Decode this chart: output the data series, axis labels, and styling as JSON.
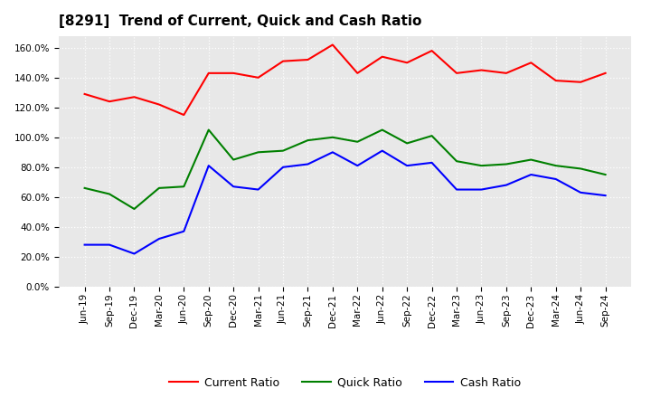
{
  "title": "[8291]  Trend of Current, Quick and Cash Ratio",
  "labels": [
    "Jun-19",
    "Sep-19",
    "Dec-19",
    "Mar-20",
    "Jun-20",
    "Sep-20",
    "Dec-20",
    "Mar-21",
    "Jun-21",
    "Sep-21",
    "Dec-21",
    "Mar-22",
    "Jun-22",
    "Sep-22",
    "Dec-22",
    "Mar-23",
    "Jun-23",
    "Sep-23",
    "Dec-23",
    "Mar-24",
    "Jun-24",
    "Sep-24"
  ],
  "current_ratio": [
    129,
    124,
    127,
    122,
    115,
    143,
    143,
    140,
    151,
    152,
    162,
    143,
    154,
    150,
    158,
    143,
    145,
    143,
    150,
    138,
    137,
    143
  ],
  "quick_ratio": [
    66,
    62,
    52,
    66,
    67,
    105,
    85,
    90,
    91,
    98,
    100,
    97,
    105,
    96,
    101,
    84,
    81,
    82,
    85,
    81,
    79,
    75
  ],
  "cash_ratio": [
    28,
    28,
    22,
    32,
    37,
    81,
    67,
    65,
    80,
    82,
    90,
    81,
    91,
    81,
    83,
    65,
    65,
    68,
    75,
    72,
    63,
    61
  ],
  "current_color": "#ff0000",
  "quick_color": "#008000",
  "cash_color": "#0000ff",
  "ylim": [
    0,
    168
  ],
  "yticks": [
    0,
    20,
    40,
    60,
    80,
    100,
    120,
    140,
    160
  ],
  "legend_labels": [
    "Current Ratio",
    "Quick Ratio",
    "Cash Ratio"
  ],
  "background_color": "#ffffff",
  "plot_bg_color": "#e8e8e8",
  "grid_color": "#ffffff",
  "title_fontsize": 11,
  "tick_fontsize": 7.5
}
